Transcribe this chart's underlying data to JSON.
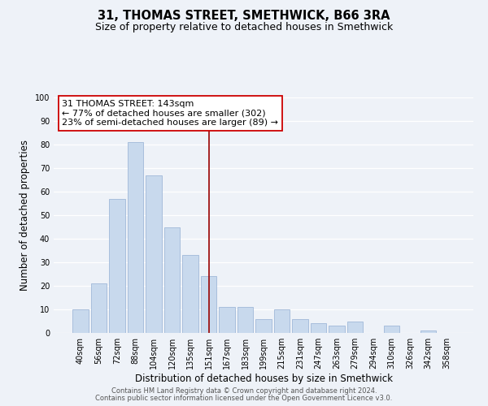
{
  "title": "31, THOMAS STREET, SMETHWICK, B66 3RA",
  "subtitle": "Size of property relative to detached houses in Smethwick",
  "xlabel": "Distribution of detached houses by size in Smethwick",
  "ylabel": "Number of detached properties",
  "bar_labels": [
    "40sqm",
    "56sqm",
    "72sqm",
    "88sqm",
    "104sqm",
    "120sqm",
    "135sqm",
    "151sqm",
    "167sqm",
    "183sqm",
    "199sqm",
    "215sqm",
    "231sqm",
    "247sqm",
    "263sqm",
    "279sqm",
    "294sqm",
    "310sqm",
    "326sqm",
    "342sqm",
    "358sqm"
  ],
  "bar_values": [
    10,
    21,
    57,
    81,
    67,
    45,
    33,
    24,
    11,
    11,
    6,
    10,
    6,
    4,
    3,
    5,
    0,
    3,
    0,
    1,
    0
  ],
  "bar_color": "#c8d9ed",
  "bar_edgecolor": "#a0b8d8",
  "vline_x": 7.0,
  "vline_color": "#990000",
  "annotation_title": "31 THOMAS STREET: 143sqm",
  "annotation_line1": "← 77% of detached houses are smaller (302)",
  "annotation_line2": "23% of semi-detached houses are larger (89) →",
  "annotation_box_color": "#ffffff",
  "annotation_box_edgecolor": "#cc0000",
  "ylim": [
    0,
    100
  ],
  "yticks": [
    0,
    10,
    20,
    30,
    40,
    50,
    60,
    70,
    80,
    90,
    100
  ],
  "footer1": "Contains HM Land Registry data © Crown copyright and database right 2024.",
  "footer2": "Contains public sector information licensed under the Open Government Licence v3.0.",
  "bg_color": "#eef2f8",
  "grid_color": "#ffffff",
  "title_fontsize": 10.5,
  "subtitle_fontsize": 9,
  "axis_label_fontsize": 8.5,
  "tick_fontsize": 7,
  "annotation_fontsize": 8,
  "footer_fontsize": 6
}
